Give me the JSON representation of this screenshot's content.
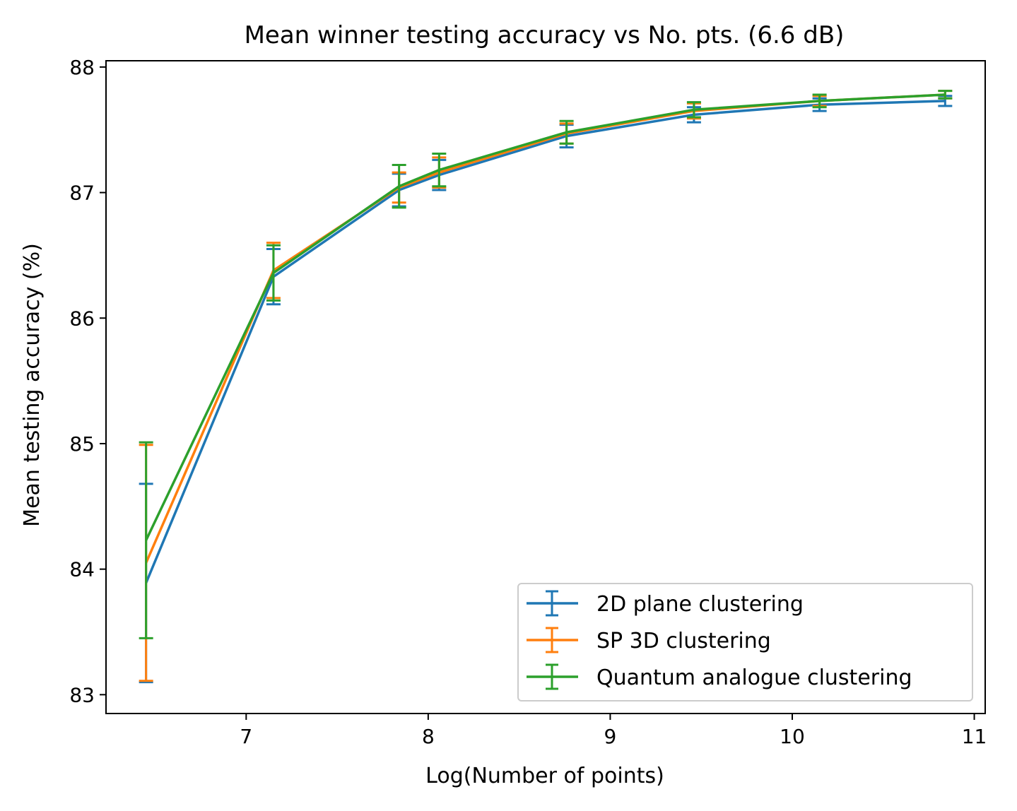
{
  "chart_data": {
    "type": "line",
    "title": "Mean winner testing accuracy vs No. pts. (6.6 dB)",
    "xlabel": "Log(Number of points)",
    "ylabel": "Mean testing accuracy  (%)",
    "xlim": [
      6.23,
      11.06
    ],
    "ylim": [
      82.85,
      88.05
    ],
    "xticks": [
      7,
      8,
      9,
      10,
      11
    ],
    "xtick_labels": [
      "7",
      "8",
      "9",
      "10",
      "11"
    ],
    "yticks": [
      83,
      84,
      85,
      86,
      87,
      88
    ],
    "ytick_labels": [
      "83",
      "84",
      "85",
      "86",
      "87",
      "88"
    ],
    "grid": false,
    "legend_position": "lower right",
    "x": [
      6.45,
      7.15,
      7.84,
      8.06,
      8.76,
      9.46,
      10.15,
      10.84
    ],
    "series": [
      {
        "name": "2D plane clustering",
        "color": "#1f77b4",
        "values": [
          83.89,
          86.33,
          87.02,
          87.14,
          87.45,
          87.62,
          87.7,
          87.73
        ],
        "errors": [
          0.79,
          0.22,
          0.13,
          0.12,
          0.09,
          0.06,
          0.05,
          0.04
        ]
      },
      {
        "name": "SP 3D clustering",
        "color": "#ff7f0e",
        "values": [
          84.05,
          86.38,
          87.04,
          87.16,
          87.47,
          87.65,
          87.73,
          87.78
        ],
        "errors": [
          0.94,
          0.22,
          0.12,
          0.12,
          0.08,
          0.06,
          0.04,
          0.03
        ]
      },
      {
        "name": "Quantum analogue clustering",
        "color": "#2ca02c",
        "values": [
          84.23,
          86.36,
          87.05,
          87.18,
          87.48,
          87.66,
          87.73,
          87.78
        ],
        "errors": [
          0.78,
          0.22,
          0.17,
          0.13,
          0.09,
          0.06,
          0.05,
          0.03
        ]
      }
    ]
  }
}
